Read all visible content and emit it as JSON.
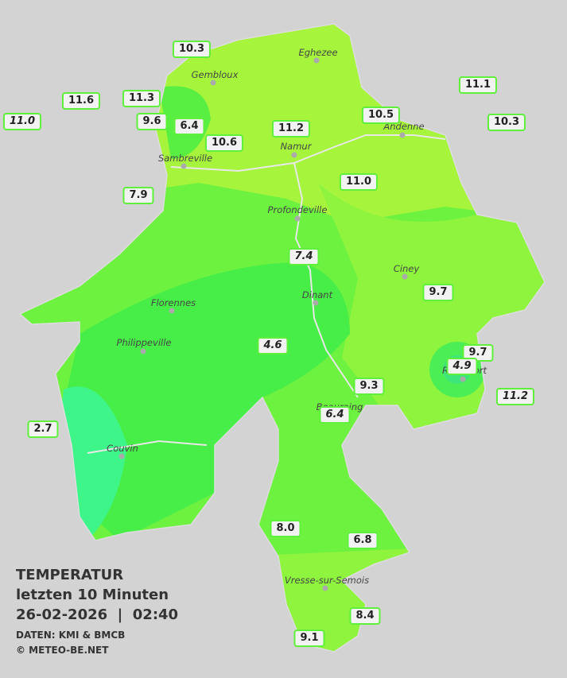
{
  "legend": {
    "title": "TEMPERATUR",
    "period": "letzten 10 Minuten",
    "datetime": "26-02-2026  |  02:40",
    "source": "DATEN: KMI & BMCB",
    "copyright": "© METEO-BE.NET"
  },
  "cities": [
    "Eghezee",
    "Gembloux",
    "Andenne",
    "Namur",
    "Sambreville",
    "Profondeville",
    "Ciney",
    "Dinant",
    "Florennes",
    "Philippeville",
    "Beauraing",
    "Rochefort",
    "Couvin",
    "Vresse-sur-Semois"
  ],
  "stations": [
    {
      "label": "10.3"
    },
    {
      "label": "11.6"
    },
    {
      "label": "11.3"
    },
    {
      "label": "11.0",
      "italic": true
    },
    {
      "label": "9.6"
    },
    {
      "label": "6.4"
    },
    {
      "label": "10.6"
    },
    {
      "label": "11.2"
    },
    {
      "label": "10.5"
    },
    {
      "label": "11.1"
    },
    {
      "label": "10.3"
    },
    {
      "label": "11.0"
    },
    {
      "label": "7.9"
    },
    {
      "label": "7.4",
      "italic": true
    },
    {
      "label": "9.7"
    },
    {
      "label": "4.6",
      "italic": true
    },
    {
      "label": "9.7"
    },
    {
      "label": "4.9",
      "italic": true
    },
    {
      "label": "11.2",
      "italic": true
    },
    {
      "label": "9.3"
    },
    {
      "label": "6.4",
      "italic": true
    },
    {
      "label": "2.7"
    },
    {
      "label": "8.0"
    },
    {
      "label": "6.8"
    },
    {
      "label": "8.4"
    },
    {
      "label": "9.1"
    }
  ]
}
